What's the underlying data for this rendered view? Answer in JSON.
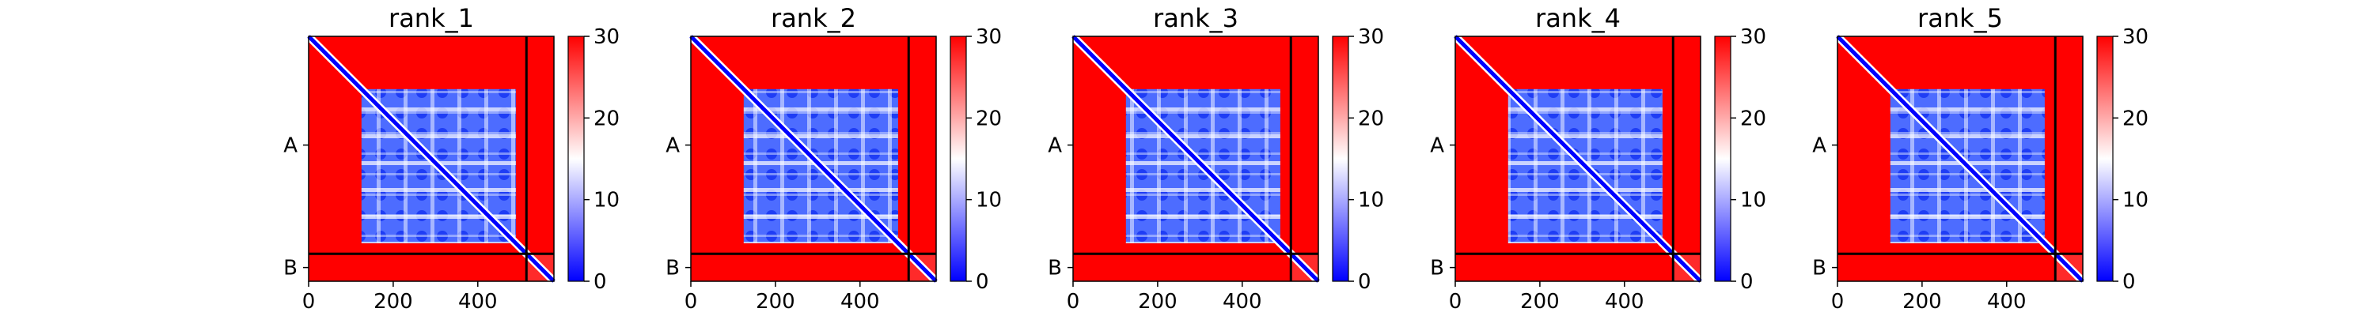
{
  "chart_data": {
    "type": "heatmap",
    "panels": [
      {
        "title": "rank_1"
      },
      {
        "title": "rank_2"
      },
      {
        "title": "rank_3"
      },
      {
        "title": "rank_4"
      },
      {
        "title": "rank_5"
      }
    ],
    "x_range": [
      0,
      580
    ],
    "x_ticks": [
      0,
      200,
      400
    ],
    "x_tick_labels": [
      "0",
      "200",
      "400"
    ],
    "y_tick_labels": [
      "A",
      "B"
    ],
    "chain_boundary": 515,
    "colorbar": {
      "range": [
        0,
        30
      ],
      "ticks": [
        0,
        10,
        20,
        30
      ],
      "tick_labels": [
        "0",
        "10",
        "20",
        "30"
      ],
      "colors": {
        "low": "#0000ff",
        "mid": "#ffffff",
        "high": "#ff0000"
      }
    },
    "domain_block": [
      125,
      490
    ],
    "grid": false
  }
}
